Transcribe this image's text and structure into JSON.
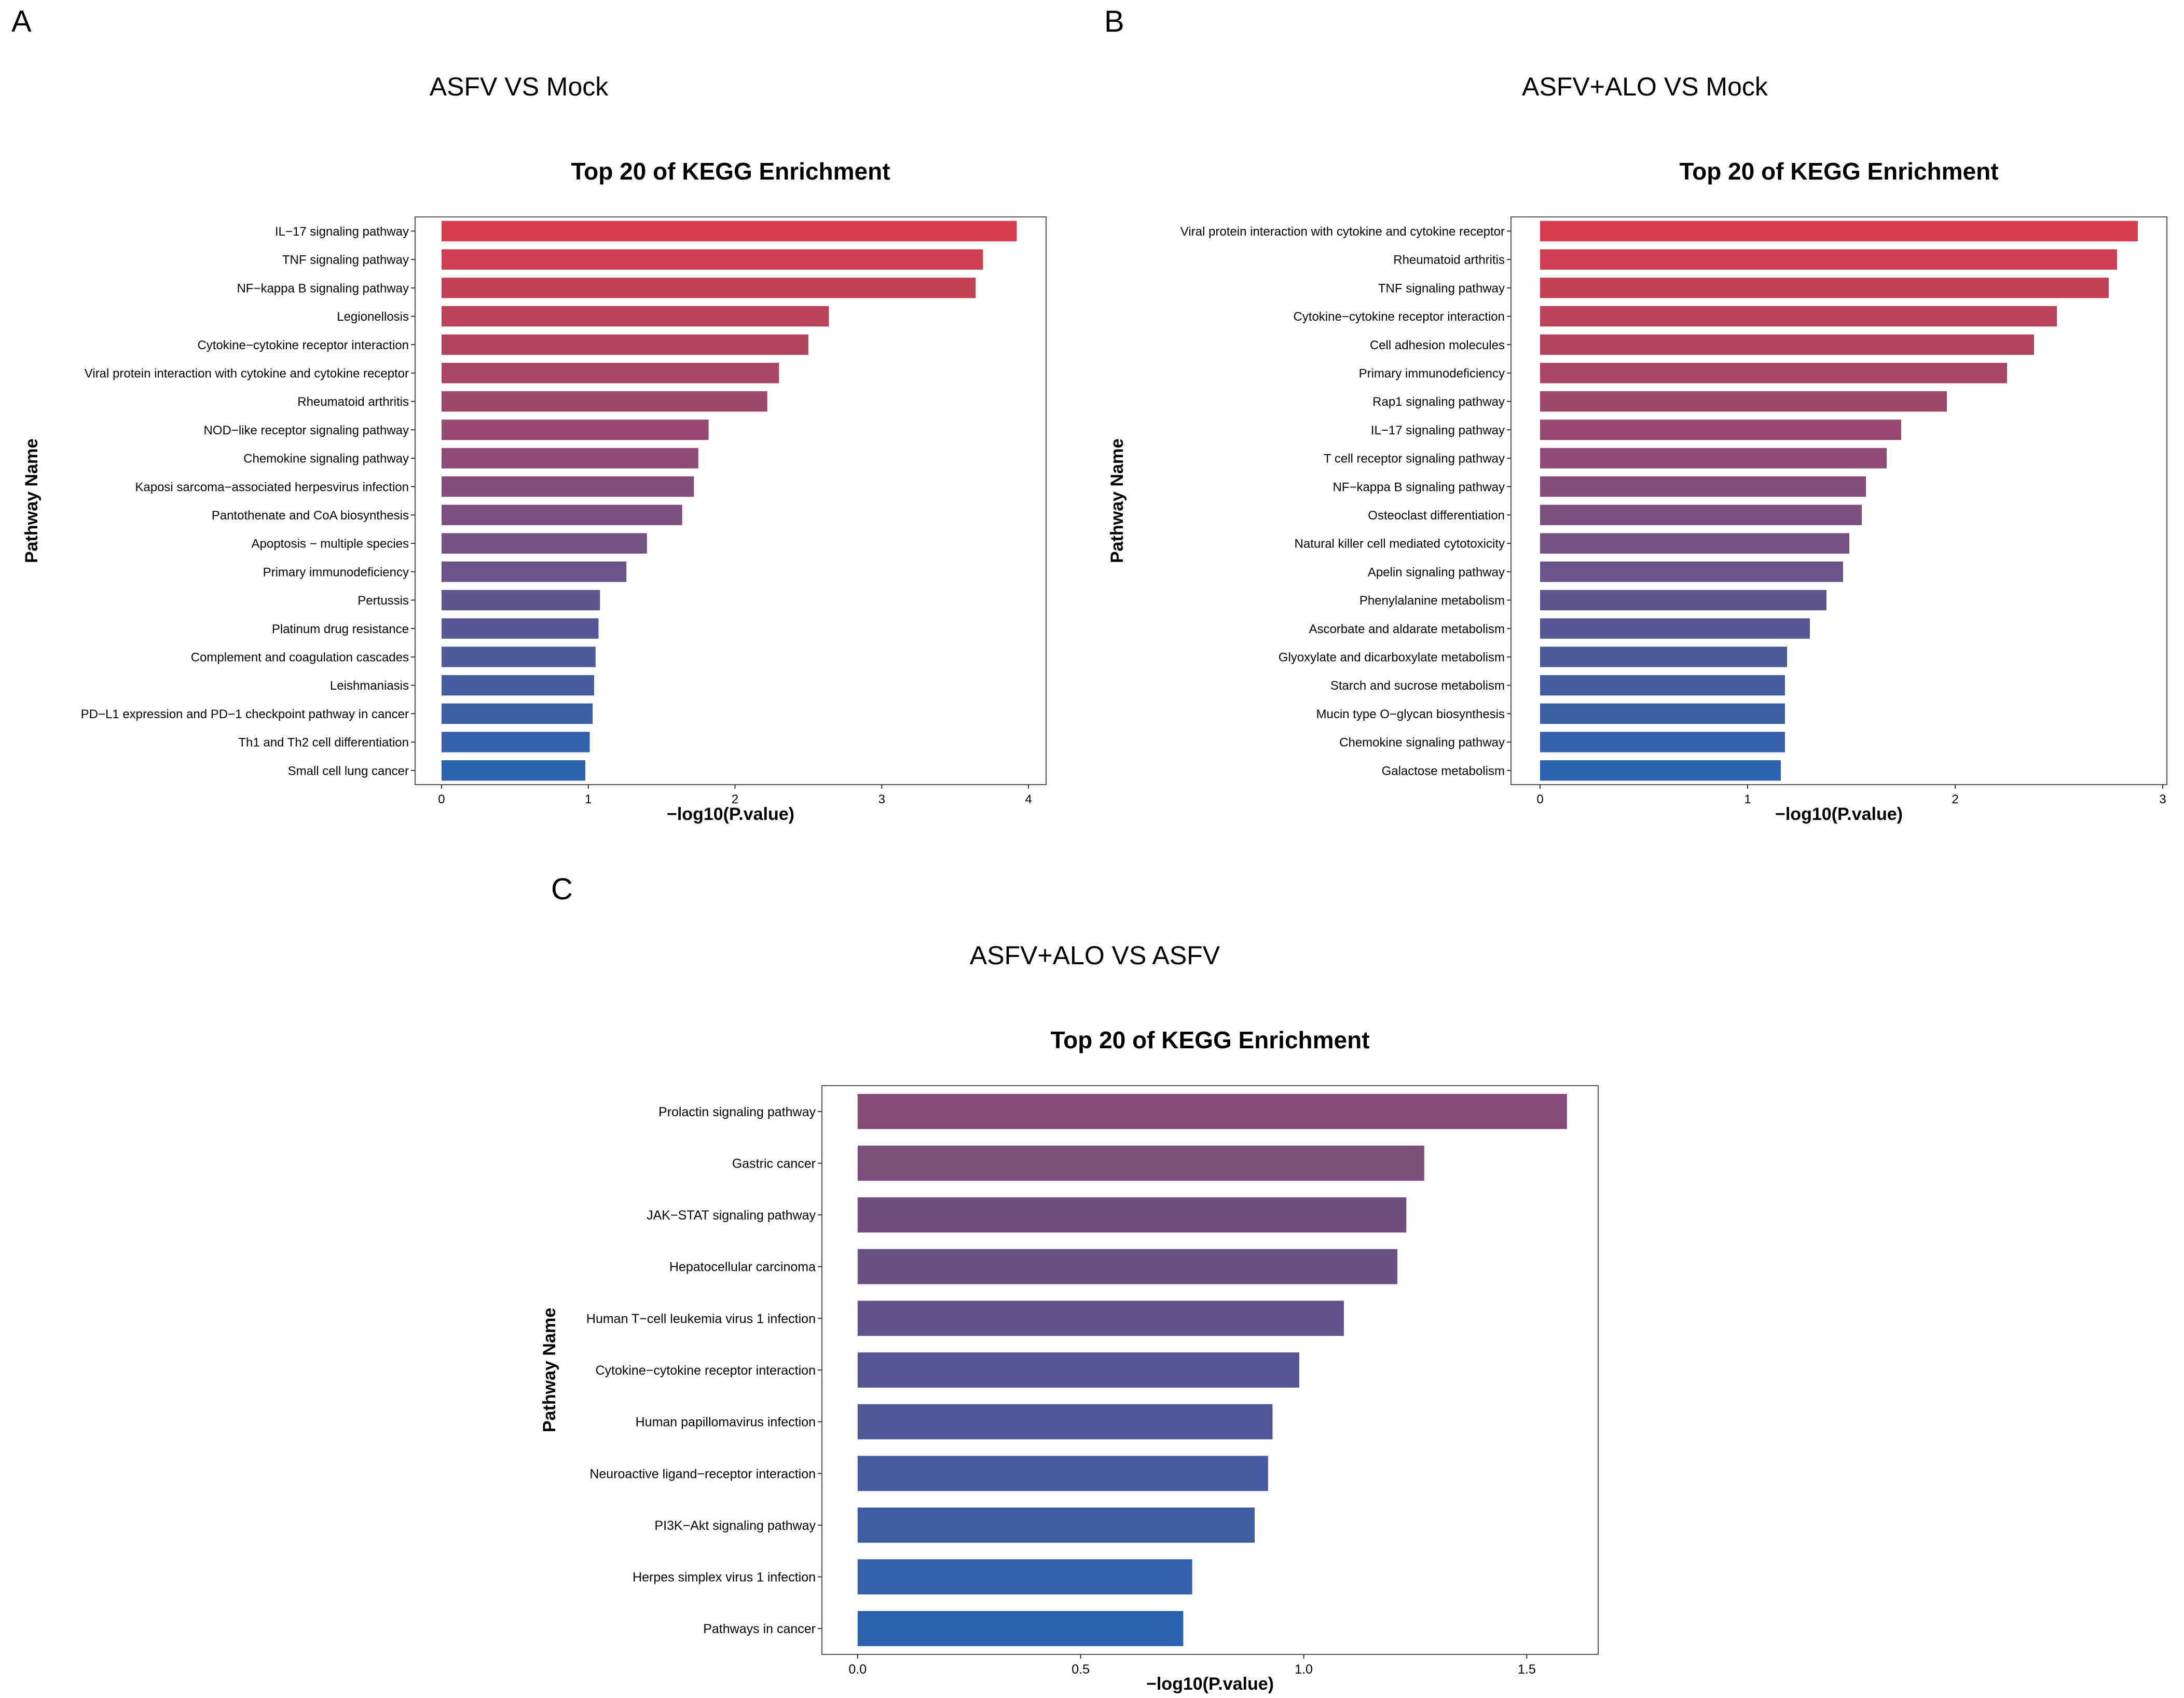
{
  "figure": {
    "panels": [
      {
        "letter": "A",
        "comparison": "ASFV VS Mock"
      },
      {
        "letter": "B",
        "comparison": "ASFV+ALO VS Mock"
      },
      {
        "letter": "C",
        "comparison": "ASFV+ALO VS ASFV"
      }
    ]
  },
  "chart_data": [
    {
      "type": "bar",
      "orientation": "horizontal",
      "title": "Top 20 of KEGG Enrichment",
      "xlabel": "−log10(P.value)",
      "ylabel": "Pathway Name",
      "xlim": [
        -0.18,
        4.12
      ],
      "xticks": [
        "0",
        "1",
        "2",
        "3",
        "4"
      ],
      "xtick_values": [
        0,
        1,
        2,
        3,
        4
      ],
      "grid": false,
      "color_gradient": {
        "top": "#d63c4c",
        "bottom": "#2a62ae"
      },
      "categories": [
        "IL−17 signaling pathway",
        "TNF signaling pathway",
        "NF−kappa B signaling pathway",
        "Legionellosis",
        "Cytokine−cytokine receptor interaction",
        "Viral protein interaction with cytokine and cytokine receptor",
        "Rheumatoid arthritis",
        "NOD−like receptor signaling pathway",
        "Chemokine signaling pathway",
        "Kaposi sarcoma−associated herpesvirus infection",
        "Pantothenate and CoA biosynthesis",
        "Apoptosis − multiple species",
        "Primary immunodeficiency",
        "Pertussis",
        "Platinum drug resistance",
        "Complement and coagulation cascades",
        "Leishmaniasis",
        "PD−L1 expression and PD−1 checkpoint pathway in cancer",
        "Th1 and Th2 cell differentiation",
        "Small cell lung cancer"
      ],
      "values": [
        3.92,
        3.69,
        3.64,
        2.64,
        2.5,
        2.3,
        2.22,
        1.82,
        1.75,
        1.72,
        1.64,
        1.4,
        1.26,
        1.08,
        1.07,
        1.05,
        1.04,
        1.03,
        1.01,
        0.98
      ]
    },
    {
      "type": "bar",
      "orientation": "horizontal",
      "title": "Top 20 of KEGG Enrichment",
      "xlabel": "−log10(P.value)",
      "ylabel": "Pathway Name",
      "xlim": [
        -0.14,
        3.02
      ],
      "xticks": [
        "0",
        "1",
        "2",
        "3"
      ],
      "xtick_values": [
        0,
        1,
        2,
        3
      ],
      "grid": false,
      "color_gradient": {
        "top": "#d63c4c",
        "bottom": "#2a62ae"
      },
      "categories": [
        "Viral protein interaction with cytokine and cytokine receptor",
        "Rheumatoid arthritis",
        "TNF signaling pathway",
        "Cytokine−cytokine receptor interaction",
        "Cell adhesion molecules",
        "Primary immunodeficiency",
        "Rap1 signaling pathway",
        "IL−17 signaling pathway",
        "T cell receptor signaling pathway",
        "NF−kappa B signaling pathway",
        "Osteoclast differentiation",
        "Natural killer cell mediated cytotoxicity",
        "Apelin signaling pathway",
        "Phenylalanine metabolism",
        "Ascorbate and aldarate metabolism",
        "Glyoxylate and dicarboxylate metabolism",
        "Starch and sucrose metabolism",
        "Mucin type O−glycan biosynthesis",
        "Chemokine signaling pathway",
        "Galactose metabolism"
      ],
      "values": [
        2.88,
        2.78,
        2.74,
        2.49,
        2.38,
        2.25,
        1.96,
        1.74,
        1.67,
        1.57,
        1.55,
        1.49,
        1.46,
        1.38,
        1.3,
        1.19,
        1.18,
        1.18,
        1.18,
        1.16
      ]
    },
    {
      "type": "bar",
      "orientation": "horizontal",
      "title": "Top 20 of KEGG Enrichment",
      "xlabel": "−log10(P.value)",
      "ylabel": "Pathway Name",
      "xlim": [
        -0.08,
        1.66
      ],
      "xticks": [
        "0.0",
        "0.5",
        "1.0",
        "1.5"
      ],
      "xtick_values": [
        0,
        0.5,
        1,
        1.5
      ],
      "grid": false,
      "color_gradient": {
        "top": "#854a75",
        "bottom": "#2a62ae"
      },
      "categories": [
        "Prolactin signaling pathway",
        "Gastric cancer",
        "JAK−STAT signaling pathway",
        "Hepatocellular carcinoma",
        "Human T−cell leukemia virus 1 infection",
        "Cytokine−cytokine receptor interaction",
        "Human papillomavirus infection",
        "Neuroactive ligand−receptor interaction",
        "PI3K−Akt signaling pathway",
        "Herpes simplex virus 1 infection",
        "Pathways in cancer"
      ],
      "values": [
        1.59,
        1.27,
        1.23,
        1.21,
        1.09,
        0.99,
        0.93,
        0.92,
        0.89,
        0.75,
        0.73
      ]
    }
  ]
}
